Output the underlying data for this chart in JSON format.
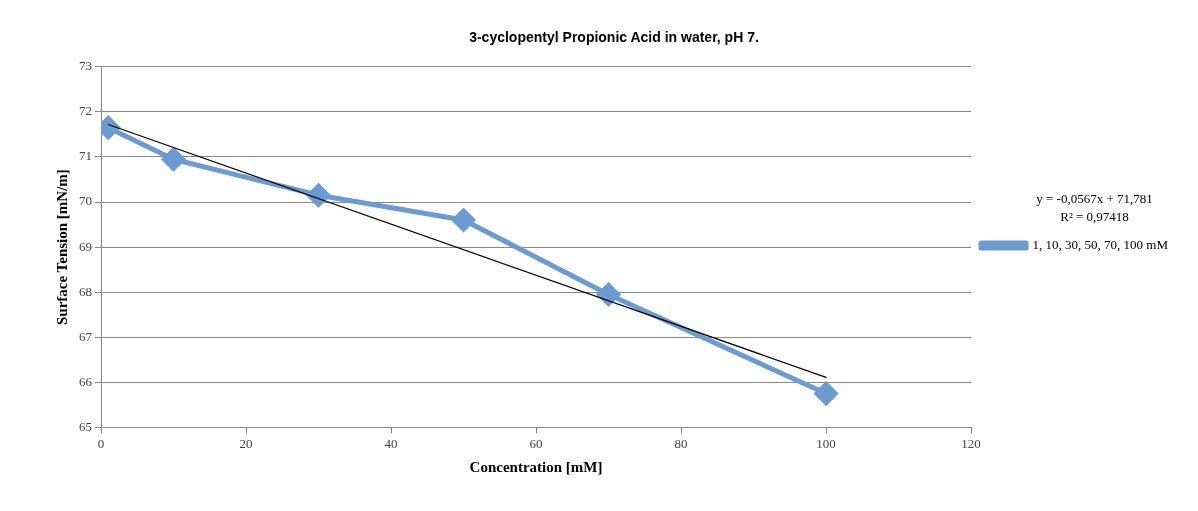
{
  "chart_data": {
    "type": "line",
    "title": "3-cyclopentyl Propionic Acid in water, pH 7.",
    "xlabel": "Concentration [mM]",
    "ylabel": "Surface Tension [mN/m]",
    "x": [
      1,
      10,
      30,
      50,
      70,
      100
    ],
    "series": [
      {
        "name": "1, 10, 30, 50, 70, 100 mM",
        "color": "#6b9bd1",
        "values": [
          71.65,
          70.95,
          70.15,
          69.6,
          67.95,
          65.75
        ],
        "marker": "diamond"
      },
      {
        "type": "line",
        "x": [
          1,
          100
        ],
        "color": "#000000",
        "values": [
          71.72,
          66.11
        ],
        "marker": "none"
      }
    ],
    "xlim": [
      0,
      120
    ],
    "xticks": [
      0,
      20,
      40,
      60,
      80,
      100,
      120
    ],
    "ylim": [
      65,
      73
    ],
    "yticks": [
      65,
      66,
      67,
      68,
      69,
      70,
      71,
      72,
      73
    ],
    "grid": "y",
    "legend": "right",
    "annotations": [
      "y = -0,0567x + 71,781",
      "R² = 0,97418"
    ]
  }
}
